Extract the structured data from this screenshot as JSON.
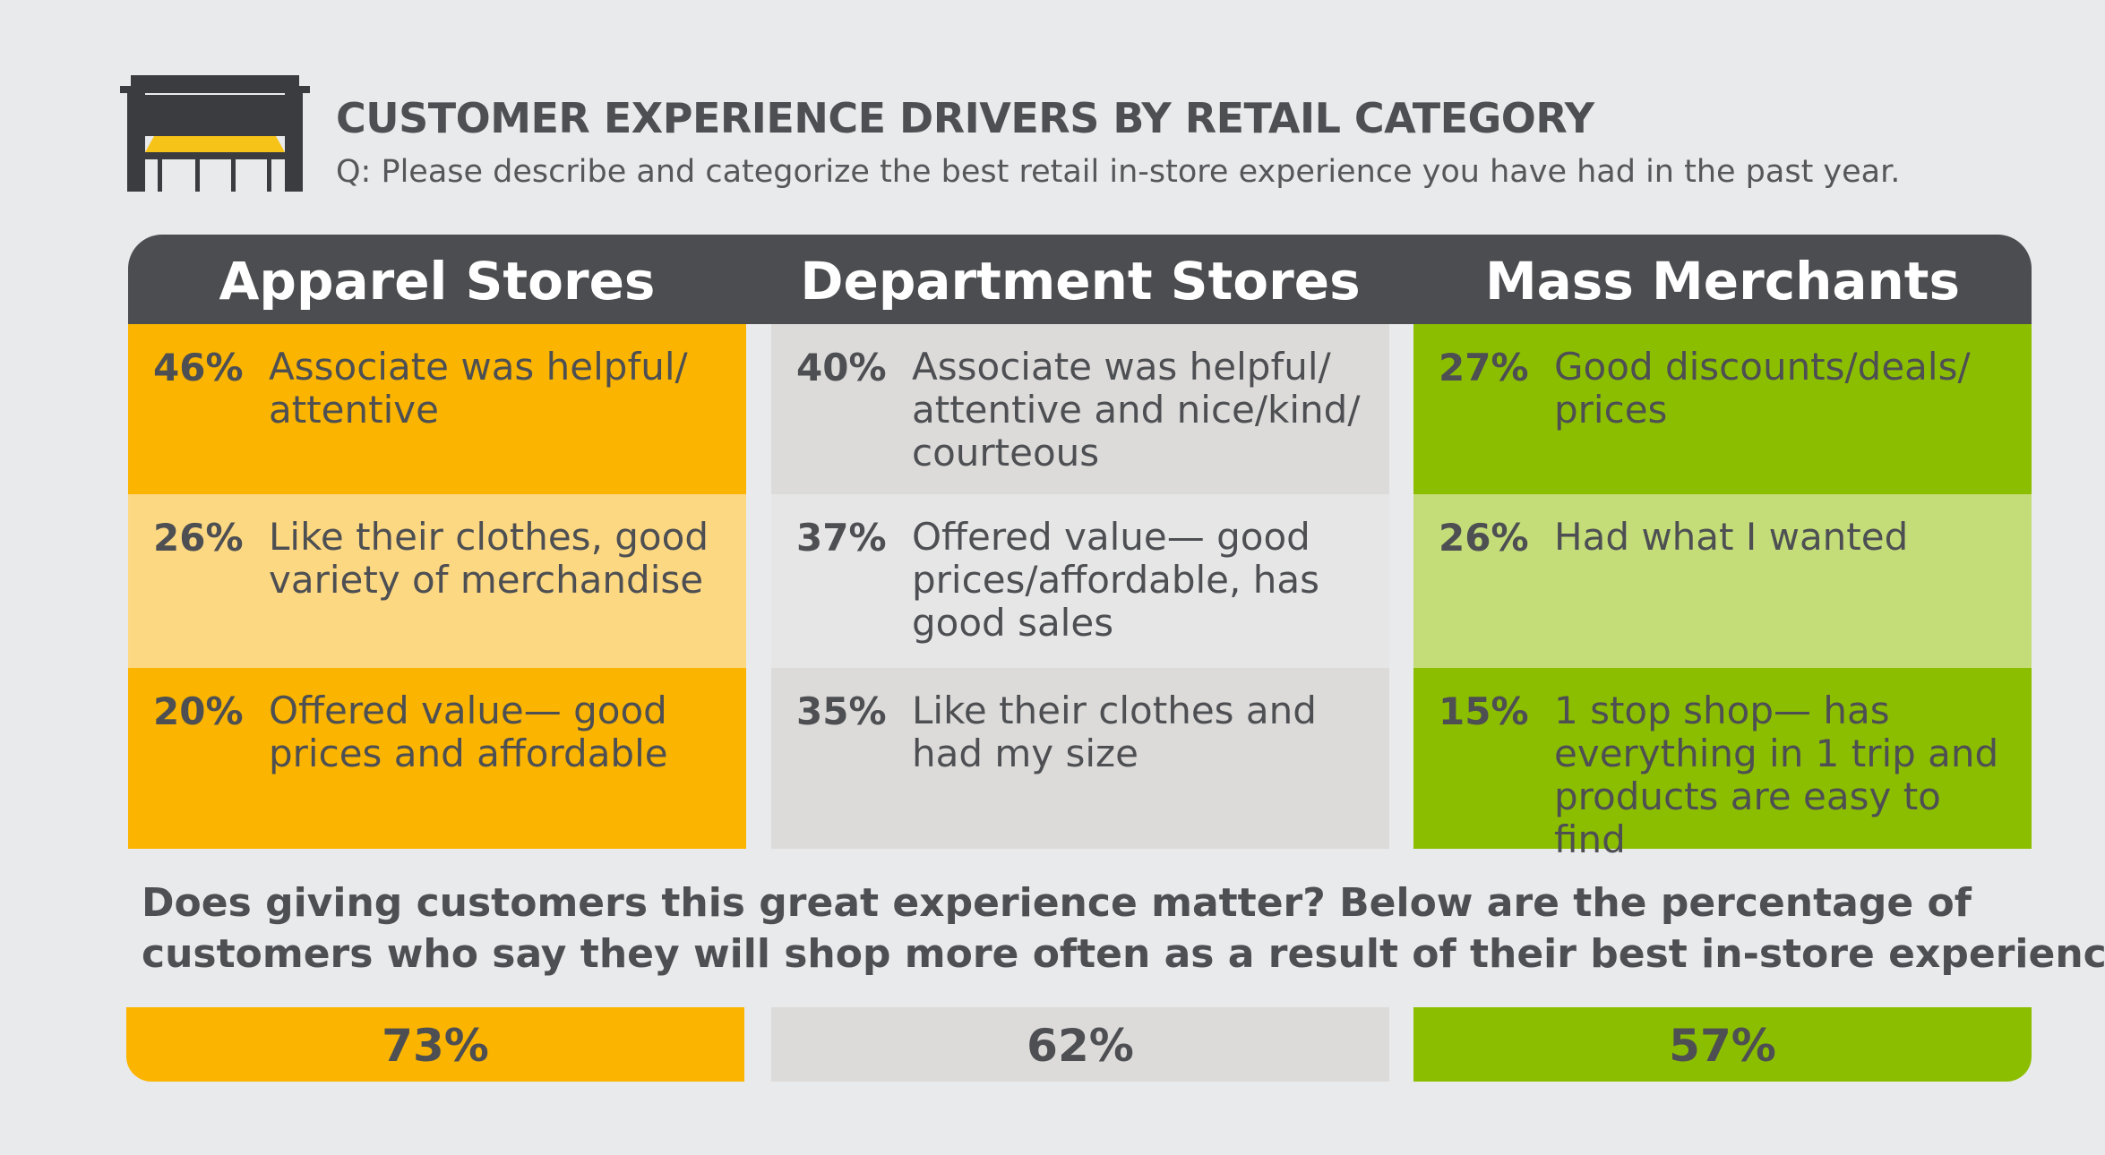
{
  "header": {
    "title": "CUSTOMER EXPERIENCE DRIVERS BY RETAIL CATEGORY",
    "subtitle": "Q: Please describe and categorize the best retail in-store experience you have had in the past year.",
    "icon": "storefront-icon"
  },
  "colors": {
    "header_bg": "#4c4d51",
    "apparel_dark": "#fbb500",
    "apparel_light": "#fdd882",
    "department_dark": "#dddbd9",
    "department_light": "#e6e6e6",
    "mass_dark": "#8cbe00",
    "mass_light": "#c4dd78",
    "text": "#4d4f53"
  },
  "columns": [
    {
      "name": "Apparel Stores",
      "items": [
        {
          "pct": "46%",
          "text": "Associate was helpful/ attentive"
        },
        {
          "pct": "26%",
          "text": "Like their clothes, good variety of merchandise"
        },
        {
          "pct": "20%",
          "text": "Offered value— good prices and affordable"
        }
      ]
    },
    {
      "name": "Department Stores",
      "items": [
        {
          "pct": "40%",
          "text": "Associate was helpful/ attentive and nice/kind/ courteous"
        },
        {
          "pct": "37%",
          "text": "Offered value— good prices/affordable, has good sales"
        },
        {
          "pct": "35%",
          "text": "Like their clothes and had my size"
        }
      ]
    },
    {
      "name": "Mass Merchants",
      "items": [
        {
          "pct": "27%",
          "text": "Good discounts/deals/ prices"
        },
        {
          "pct": "26%",
          "text": "Had what I wanted"
        },
        {
          "pct": "15%",
          "text": "1 stop shop— has everything in 1 trip and products are easy to find"
        }
      ]
    }
  ],
  "question": {
    "line1": "Does giving customers this great experience matter?  Below are the percentage of",
    "line2": "customers who say they will shop more often as a result of their best in-store experience:"
  },
  "shop_more": [
    {
      "label": "73%"
    },
    {
      "label": "62%"
    },
    {
      "label": "57%"
    }
  ],
  "chart_data": {
    "type": "table",
    "title": "CUSTOMER EXPERIENCE DRIVERS BY RETAIL CATEGORY",
    "subtitle": "Q: Please describe and categorize the best retail in-store experience you have had in the past year.",
    "categories": [
      "Apparel Stores",
      "Department Stores",
      "Mass Merchants"
    ],
    "series": [
      {
        "values": [
          46,
          26,
          20
        ]
      },
      {
        "values": [
          40,
          37,
          35
        ]
      },
      {
        "values": [
          27,
          26,
          15
        ]
      }
    ],
    "shop_more_often": [
      73,
      62,
      57
    ]
  }
}
